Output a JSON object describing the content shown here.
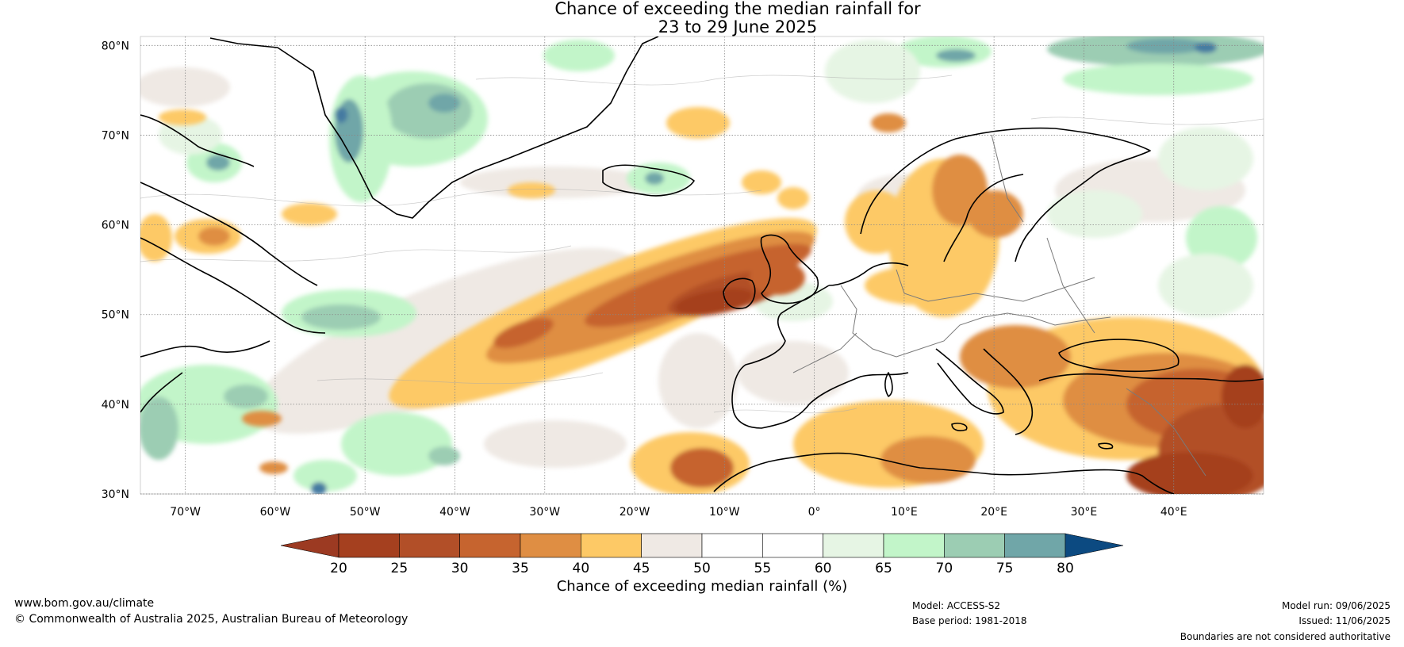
{
  "title": {
    "line1": "Chance of exceeding the median rainfall for",
    "line2": "23 to 29 June 2025"
  },
  "map": {
    "region": "North Atlantic and Europe",
    "projection": "plate-carree",
    "lon_range": [
      -75,
      50
    ],
    "lat_range": [
      30,
      81
    ],
    "lat_labels": [
      "80°N",
      "70°N",
      "60°N",
      "50°N",
      "40°N",
      "30°N"
    ],
    "lon_labels": [
      "70°W",
      "60°W",
      "50°W",
      "40°W",
      "30°W",
      "20°W",
      "10°W",
      "0°",
      "10°E",
      "20°E",
      "30°E",
      "40°E"
    ],
    "gridlines": true
  },
  "colorbar": {
    "label": "Chance of exceeding median rainfall (%)",
    "ticks": [
      "20",
      "25",
      "30",
      "35",
      "40",
      "45",
      "50",
      "55",
      "60",
      "65",
      "70",
      "75",
      "80"
    ],
    "colors": [
      "#a5401f",
      "#b24f28",
      "#c6642f",
      "#df8e43",
      "#fdc966",
      "#efe9e4",
      "#ffffff",
      "#ffffff",
      "#e6f5e4",
      "#c2f5c9",
      "#9ccdb3",
      "#70a6a8",
      "#457aa1"
    ],
    "under_color": "#9c3a22",
    "over_color": "#0c4a81"
  },
  "footer": {
    "website": "www.bom.gov.au/climate",
    "copyright": "© Commonwealth of Australia 2025, Australian Bureau of Meteorology",
    "model": "Model: ACCESS-S2",
    "base_period": "Base period: 1981-2018",
    "model_run": "Model run: 09/06/2025",
    "issued": "Issued: 11/06/2025",
    "disclaimer": "Boundaries are not considered authoritative"
  }
}
